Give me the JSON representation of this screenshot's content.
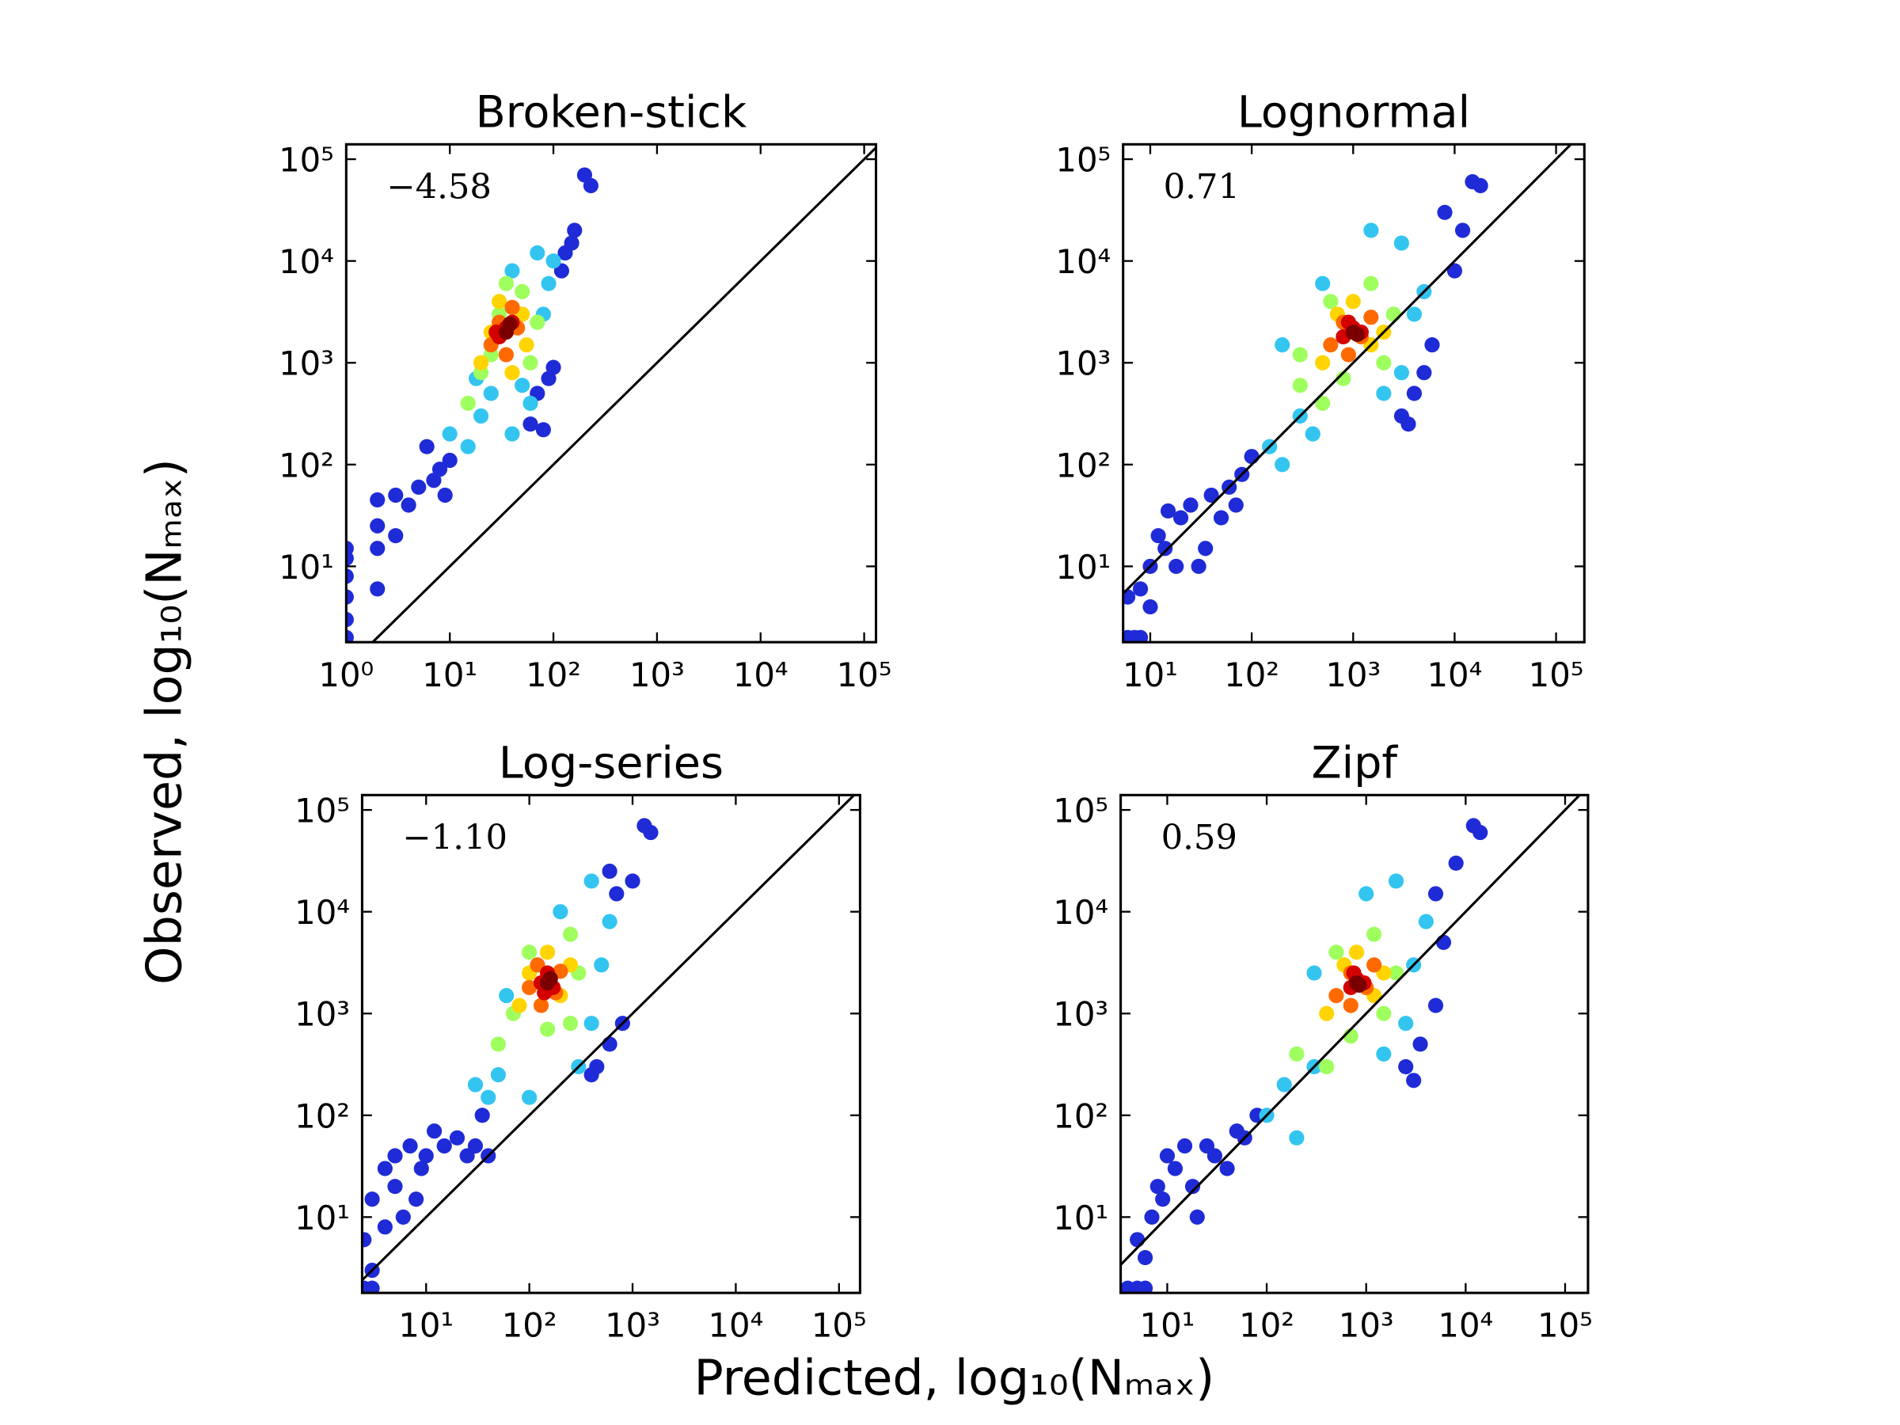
{
  "xlabel": "Predicted, log₁₀(Nₘₐₓ)",
  "ylabel": "Observed, log₁₀(Nₘₐₓ)",
  "chart_data": [
    {
      "type": "scatter",
      "title": "Broken-stick",
      "annotation": "−4.58",
      "xscale": "log",
      "yscale": "log",
      "identity_line": true,
      "xlim": [
        1,
        130000
      ],
      "ylim": [
        1.8,
        140000
      ],
      "xticks": [
        {
          "value": 1,
          "label": "10⁰"
        },
        {
          "value": 10,
          "label": "10¹"
        },
        {
          "value": 100,
          "label": "10²"
        },
        {
          "value": 1000,
          "label": "10³"
        },
        {
          "value": 10000,
          "label": "10⁴"
        },
        {
          "value": 100000,
          "label": "10⁵"
        }
      ],
      "yticks": [
        {
          "value": 10,
          "label": "10¹"
        },
        {
          "value": 100,
          "label": "10²"
        },
        {
          "value": 1000,
          "label": "10³"
        },
        {
          "value": 10000,
          "label": "10⁴"
        },
        {
          "value": 100000,
          "label": "10⁵"
        }
      ],
      "series": [
        {
          "color": "#1f2bd6",
          "x": [
            1,
            1,
            1,
            1,
            1,
            1,
            2,
            2,
            2,
            2,
            3,
            3,
            4,
            5,
            6,
            7,
            8,
            9,
            10,
            60,
            80,
            70,
            90,
            100,
            150,
            160,
            200,
            230,
            120,
            130
          ],
          "values": [
            2,
            3,
            5,
            8,
            12,
            15,
            6,
            15,
            25,
            45,
            20,
            50,
            40,
            60,
            150,
            70,
            90,
            50,
            110,
            250,
            220,
            500,
            700,
            900,
            15000,
            20000,
            70000,
            55000,
            8000,
            12000
          ]
        },
        {
          "color": "#33c5f0",
          "x": [
            10,
            15,
            20,
            25,
            40,
            60,
            80,
            90,
            100,
            70,
            40,
            18,
            50
          ],
          "values": [
            200,
            150,
            300,
            500,
            200,
            400,
            3000,
            6000,
            10000,
            12000,
            8000,
            700,
            600
          ]
        },
        {
          "color": "#9fff5e",
          "x": [
            15,
            20,
            25,
            60,
            70,
            50,
            35,
            30
          ],
          "values": [
            400,
            800,
            1200,
            1000,
            2500,
            5000,
            6000,
            3000
          ]
        },
        {
          "color": "#ffd400",
          "x": [
            20,
            25,
            50,
            55,
            40,
            30
          ],
          "values": [
            1000,
            2000,
            3000,
            1500,
            800,
            4000
          ]
        },
        {
          "color": "#ff6a00",
          "x": [
            25,
            30,
            45,
            40,
            35
          ],
          "values": [
            1500,
            2500,
            2200,
            3500,
            1200
          ]
        },
        {
          "color": "#d40000",
          "x": [
            30,
            35,
            40,
            28
          ],
          "values": [
            1800,
            2200,
            2500,
            2000
          ]
        },
        {
          "color": "#7a0000",
          "x": [
            35,
            38
          ],
          "values": [
            2000,
            2400
          ]
        }
      ]
    },
    {
      "type": "scatter",
      "title": "Lognormal",
      "annotation": "0.71",
      "xscale": "log",
      "yscale": "log",
      "identity_line": true,
      "xlim": [
        5.4,
        190000
      ],
      "ylim": [
        1.8,
        140000
      ],
      "xticks": [
        {
          "value": 10,
          "label": "10¹"
        },
        {
          "value": 100,
          "label": "10²"
        },
        {
          "value": 1000,
          "label": "10³"
        },
        {
          "value": 10000,
          "label": "10⁴"
        },
        {
          "value": 100000,
          "label": "10⁵"
        }
      ],
      "yticks": [
        {
          "value": 10,
          "label": "10¹"
        },
        {
          "value": 100,
          "label": "10²"
        },
        {
          "value": 1000,
          "label": "10³"
        },
        {
          "value": 10000,
          "label": "10⁴"
        },
        {
          "value": 100000,
          "label": "10⁵"
        }
      ],
      "series": [
        {
          "color": "#1f2bd6",
          "x": [
            6,
            7,
            8,
            6,
            8,
            10,
            10,
            12,
            14,
            15,
            18,
            20,
            25,
            30,
            35,
            40,
            50,
            60,
            70,
            80,
            100,
            3000,
            3500,
            4000,
            5000,
            6000,
            10000,
            15000,
            18000,
            8000,
            12000
          ],
          "values": [
            2,
            2,
            2,
            5,
            6,
            4,
            10,
            20,
            15,
            35,
            10,
            30,
            40,
            10,
            15,
            50,
            30,
            60,
            40,
            80,
            120,
            300,
            250,
            500,
            800,
            1500,
            8000,
            60000,
            55000,
            30000,
            20000
          ]
        },
        {
          "color": "#33c5f0",
          "x": [
            150,
            200,
            300,
            400,
            2000,
            3000,
            4000,
            5000,
            3000,
            1500,
            500,
            200
          ],
          "values": [
            150,
            100,
            300,
            200,
            500,
            800,
            3000,
            5000,
            15000,
            20000,
            6000,
            1500
          ]
        },
        {
          "color": "#9fff5e",
          "x": [
            300,
            500,
            800,
            2000,
            2500,
            1500,
            600,
            300
          ],
          "values": [
            600,
            400,
            700,
            1000,
            3000,
            6000,
            4000,
            1200
          ]
        },
        {
          "color": "#ffd400",
          "x": [
            500,
            700,
            1500,
            2000,
            1000
          ],
          "values": [
            1000,
            3000,
            1500,
            2000,
            4000
          ]
        },
        {
          "color": "#ff6a00",
          "x": [
            600,
            800,
            1200,
            1500,
            900
          ],
          "values": [
            1500,
            2500,
            1800,
            2800,
            1200
          ]
        },
        {
          "color": "#d40000",
          "x": [
            800,
            1000,
            1200,
            900
          ],
          "values": [
            1800,
            2200,
            2000,
            2500
          ]
        },
        {
          "color": "#7a0000",
          "x": [
            1000,
            1100
          ],
          "values": [
            2000,
            1900
          ]
        }
      ]
    },
    {
      "type": "scatter",
      "title": "Log-series",
      "annotation": "−1.10",
      "xscale": "log",
      "yscale": "log",
      "identity_line": true,
      "xlim": [
        2.4,
        160000
      ],
      "ylim": [
        1.8,
        140000
      ],
      "xticks": [
        {
          "value": 10,
          "label": "10¹"
        },
        {
          "value": 100,
          "label": "10²"
        },
        {
          "value": 1000,
          "label": "10³"
        },
        {
          "value": 10000,
          "label": "10⁴"
        },
        {
          "value": 100000,
          "label": "10⁵"
        }
      ],
      "yticks": [
        {
          "value": 10,
          "label": "10¹"
        },
        {
          "value": 100,
          "label": "10²"
        },
        {
          "value": 1000,
          "label": "10³"
        },
        {
          "value": 10000,
          "label": "10⁴"
        },
        {
          "value": 100000,
          "label": "10⁵"
        }
      ],
      "series": [
        {
          "color": "#1f2bd6",
          "x": [
            2.5,
            2.5,
            3,
            3,
            3,
            4,
            4,
            5,
            5,
            6,
            7,
            8,
            9,
            10,
            12,
            15,
            20,
            25,
            30,
            35,
            40,
            400,
            450,
            600,
            800,
            1000,
            1300,
            1500,
            700,
            600
          ],
          "values": [
            2,
            6,
            2,
            3,
            15,
            8,
            30,
            20,
            40,
            10,
            50,
            15,
            30,
            40,
            70,
            50,
            60,
            40,
            50,
            100,
            40,
            250,
            300,
            500,
            800,
            20000,
            70000,
            60000,
            15000,
            25000
          ]
        },
        {
          "color": "#33c5f0",
          "x": [
            30,
            40,
            50,
            100,
            300,
            400,
            500,
            600,
            400,
            200,
            60
          ],
          "values": [
            200,
            150,
            250,
            150,
            300,
            800,
            3000,
            8000,
            20000,
            10000,
            1500
          ]
        },
        {
          "color": "#9fff5e",
          "x": [
            50,
            70,
            150,
            250,
            300,
            250,
            100
          ],
          "values": [
            500,
            1000,
            700,
            800,
            2500,
            6000,
            4000
          ]
        },
        {
          "color": "#ffd400",
          "x": [
            80,
            100,
            200,
            250,
            150
          ],
          "values": [
            1200,
            2500,
            1500,
            3000,
            4000
          ]
        },
        {
          "color": "#ff6a00",
          "x": [
            100,
            120,
            180,
            200,
            130
          ],
          "values": [
            1800,
            3000,
            1600,
            2600,
            1200
          ]
        },
        {
          "color": "#d40000",
          "x": [
            130,
            150,
            170,
            140
          ],
          "values": [
            2000,
            2500,
            1800,
            1600
          ]
        },
        {
          "color": "#7a0000",
          "x": [
            150,
            160
          ],
          "values": [
            2000,
            2200
          ]
        }
      ]
    },
    {
      "type": "scatter",
      "title": "Zipf",
      "annotation": "0.59",
      "xscale": "log",
      "yscale": "log",
      "identity_line": true,
      "xlim": [
        3.4,
        170000
      ],
      "ylim": [
        1.8,
        140000
      ],
      "xticks": [
        {
          "value": 10,
          "label": "10¹"
        },
        {
          "value": 100,
          "label": "10²"
        },
        {
          "value": 1000,
          "label": "10³"
        },
        {
          "value": 10000,
          "label": "10⁴"
        },
        {
          "value": 100000,
          "label": "10⁵"
        }
      ],
      "yticks": [
        {
          "value": 10,
          "label": "10¹"
        },
        {
          "value": 100,
          "label": "10²"
        },
        {
          "value": 1000,
          "label": "10³"
        },
        {
          "value": 10000,
          "label": "10⁴"
        },
        {
          "value": 100000,
          "label": "10⁵"
        }
      ],
      "series": [
        {
          "color": "#1f2bd6",
          "x": [
            4,
            5,
            6,
            5,
            6,
            7,
            8,
            9,
            10,
            12,
            15,
            18,
            20,
            25,
            30,
            40,
            50,
            60,
            80,
            2500,
            3000,
            3500,
            5000,
            6000,
            5000,
            12000,
            14000,
            8000
          ],
          "values": [
            2,
            2,
            2,
            6,
            4,
            10,
            20,
            15,
            40,
            30,
            50,
            20,
            10,
            50,
            40,
            30,
            70,
            60,
            100,
            300,
            220,
            500,
            1200,
            5000,
            15000,
            70000,
            60000,
            30000
          ]
        },
        {
          "color": "#33c5f0",
          "x": [
            100,
            150,
            200,
            300,
            1500,
            2500,
            3000,
            4000,
            2000,
            1000,
            300
          ],
          "values": [
            100,
            200,
            60,
            300,
            400,
            800,
            3000,
            8000,
            20000,
            15000,
            2500
          ]
        },
        {
          "color": "#9fff5e",
          "x": [
            200,
            400,
            700,
            1500,
            2000,
            1200,
            500
          ],
          "values": [
            400,
            300,
            600,
            1000,
            2500,
            6000,
            4000
          ]
        },
        {
          "color": "#ffd400",
          "x": [
            400,
            600,
            1200,
            1500,
            800
          ],
          "values": [
            1000,
            3000,
            1500,
            2500,
            4000
          ]
        },
        {
          "color": "#ff6a00",
          "x": [
            500,
            700,
            1000,
            1200,
            700
          ],
          "values": [
            1500,
            2500,
            1800,
            3000,
            1200
          ]
        },
        {
          "color": "#d40000",
          "x": [
            700,
            800,
            950,
            750
          ],
          "values": [
            1800,
            2200,
            2000,
            2500
          ]
        },
        {
          "color": "#7a0000",
          "x": [
            800,
            850
          ],
          "values": [
            2000,
            1900
          ]
        }
      ]
    }
  ]
}
